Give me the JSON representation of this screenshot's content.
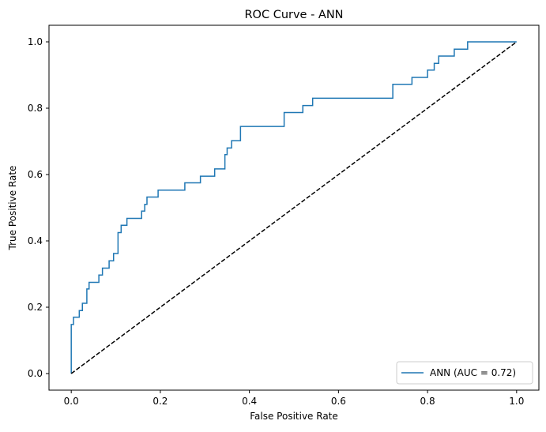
{
  "chart_data": {
    "type": "line",
    "title": "ROC Curve - ANN",
    "xlabel": "False Positive Rate",
    "ylabel": "True Positive Rate",
    "xlim": [
      -0.05,
      1.05
    ],
    "ylim": [
      -0.05,
      1.05
    ],
    "x_ticks": [
      "0.0",
      "0.2",
      "0.4",
      "0.6",
      "0.8",
      "1.0"
    ],
    "y_ticks": [
      "0.0",
      "0.2",
      "0.4",
      "0.6",
      "0.8",
      "1.0"
    ],
    "grid": false,
    "legend_position": "lower right",
    "series": [
      {
        "name": "ANN (AUC = 0.72)",
        "color": "#1f77b4",
        "style": "step",
        "x": [
          0.0,
          0.0,
          0.005,
          0.005,
          0.018,
          0.018,
          0.025,
          0.025,
          0.035,
          0.035,
          0.04,
          0.04,
          0.062,
          0.062,
          0.07,
          0.07,
          0.085,
          0.085,
          0.095,
          0.095,
          0.105,
          0.105,
          0.112,
          0.112,
          0.125,
          0.125,
          0.158,
          0.158,
          0.165,
          0.165,
          0.17,
          0.17,
          0.195,
          0.195,
          0.255,
          0.255,
          0.29,
          0.29,
          0.322,
          0.322,
          0.345,
          0.345,
          0.35,
          0.35,
          0.36,
          0.36,
          0.38,
          0.38,
          0.478,
          0.478,
          0.52,
          0.52,
          0.542,
          0.542,
          0.722,
          0.722,
          0.765,
          0.765,
          0.8,
          0.8,
          0.815,
          0.815,
          0.825,
          0.825,
          0.86,
          0.86,
          0.89,
          0.89,
          1.0
        ],
        "y": [
          0.0,
          0.148,
          0.148,
          0.17,
          0.17,
          0.19,
          0.19,
          0.212,
          0.212,
          0.255,
          0.255,
          0.275,
          0.275,
          0.297,
          0.297,
          0.318,
          0.318,
          0.34,
          0.34,
          0.362,
          0.362,
          0.425,
          0.425,
          0.447,
          0.447,
          0.468,
          0.468,
          0.49,
          0.49,
          0.51,
          0.51,
          0.532,
          0.532,
          0.553,
          0.553,
          0.575,
          0.575,
          0.595,
          0.595,
          0.617,
          0.617,
          0.66,
          0.66,
          0.68,
          0.68,
          0.702,
          0.702,
          0.745,
          0.745,
          0.787,
          0.787,
          0.808,
          0.808,
          0.83,
          0.83,
          0.872,
          0.872,
          0.893,
          0.893,
          0.915,
          0.915,
          0.935,
          0.935,
          0.957,
          0.957,
          0.978,
          0.978,
          1.0,
          1.0
        ]
      },
      {
        "name": "",
        "color": "#000000",
        "style": "dashed",
        "x": [
          0.0,
          1.0
        ],
        "y": [
          0.0,
          1.0
        ]
      }
    ]
  }
}
